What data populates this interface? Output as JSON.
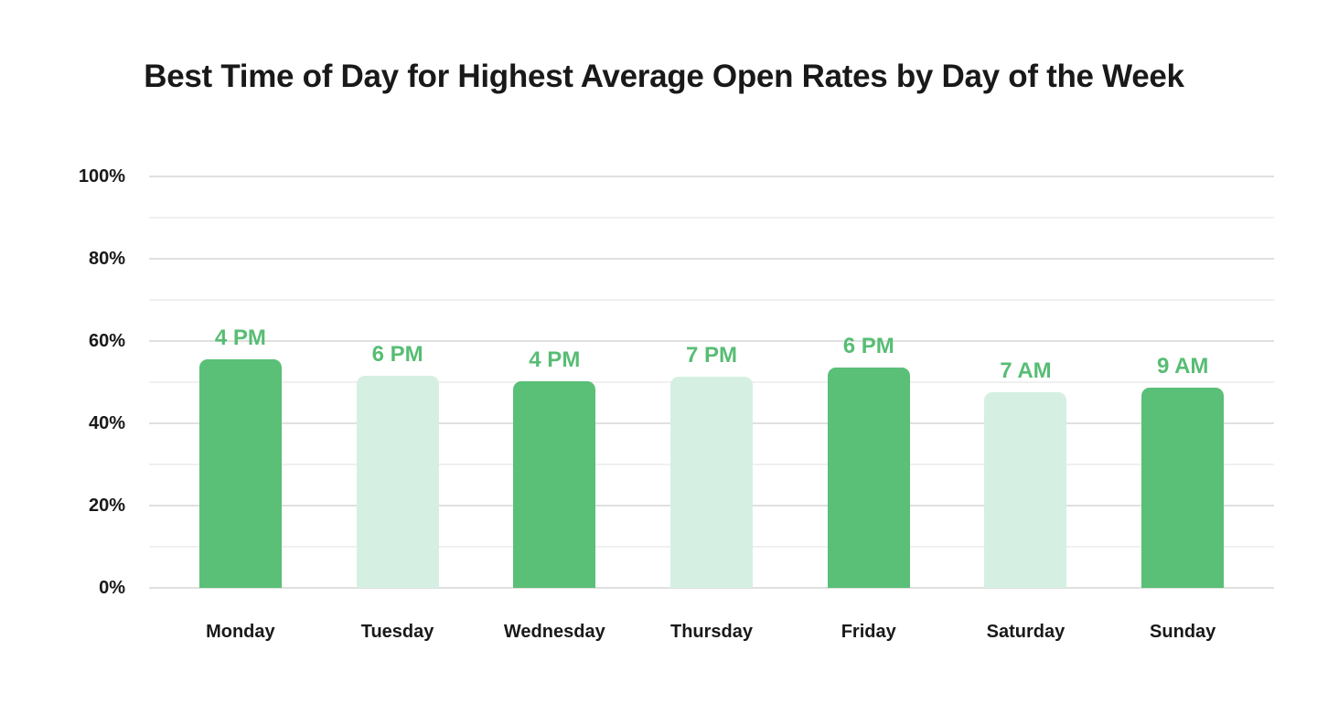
{
  "page": {
    "background": "#ffffff"
  },
  "chart_data": {
    "type": "bar",
    "title": "Best Time of Day for Highest Average Open Rates by Day of the Week",
    "categories": [
      "Monday",
      "Tuesday",
      "Wednesday",
      "Thursday",
      "Friday",
      "Saturday",
      "Sunday"
    ],
    "values": [
      55.5,
      51.5,
      50.3,
      51.4,
      53.6,
      47.6,
      48.7
    ],
    "bar_labels": [
      "4 PM",
      "6 PM",
      "4 PM",
      "7 PM",
      "6 PM",
      "7 AM",
      "9 AM"
    ],
    "bar_shades": [
      "dark",
      "light",
      "dark",
      "light",
      "dark",
      "light",
      "dark"
    ],
    "xlabel": "",
    "ylabel": "",
    "ylim": [
      0,
      100
    ],
    "ytick_values": [
      0,
      20,
      40,
      60,
      80,
      100
    ],
    "ytick_labels": [
      "0%",
      "20%",
      "40%",
      "60%",
      "80%",
      "100%"
    ],
    "minor_grid_step": 10,
    "grid": true,
    "legend": false,
    "colors": {
      "bar_dark": "#5abf77",
      "bar_light": "#d5f0e2",
      "bar_label": "#57bd74",
      "grid_major": "#e0e0e0",
      "grid_minor": "#f0f0f0",
      "text": "#191919",
      "background": "#ffffff"
    }
  }
}
